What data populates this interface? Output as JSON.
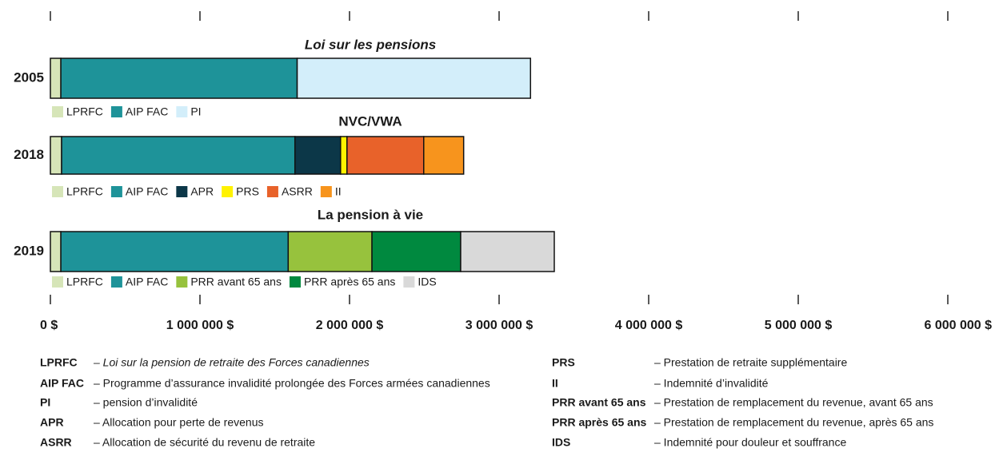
{
  "chart_data": {
    "type": "stacked_bar",
    "xlim": [
      0,
      6000000
    ],
    "xticks": [
      {
        "value": 0,
        "label": "0 $"
      },
      {
        "value": 1000000,
        "label": "1 000 000 $"
      },
      {
        "value": 2000000,
        "label": "2 000 000 $"
      },
      {
        "value": 3000000,
        "label": "3 000 000 $"
      },
      {
        "value": 4000000,
        "label": "4 000 000 $"
      },
      {
        "value": 5000000,
        "label": "5 000 000 $"
      },
      {
        "value": 6000000,
        "label": "6 000 000 $"
      }
    ],
    "rows": [
      {
        "category": "2005",
        "title": "Loi sur les pensions",
        "title_italic": true,
        "segments": [
          {
            "name": "LPRFC",
            "color": "#d6e5b8",
            "value": 70000
          },
          {
            "name": "AIP FAC",
            "color": "#1e9399",
            "value": 1580000
          },
          {
            "name": "PI",
            "color": "#d3eefa",
            "value": 1560000
          }
        ]
      },
      {
        "category": "2018",
        "title": "NVC/VWA",
        "title_italic": false,
        "segments": [
          {
            "name": "LPRFC",
            "color": "#d6e5b8",
            "value": 75000
          },
          {
            "name": "AIP FAC",
            "color": "#1e9399",
            "value": 1560000
          },
          {
            "name": "APR",
            "color": "#0c3748",
            "value": 305000
          },
          {
            "name": "PRS",
            "color": "#fff200",
            "value": 43000
          },
          {
            "name": "ASRR",
            "color": "#e8622a",
            "value": 513000
          },
          {
            "name": "II",
            "color": "#f7941d",
            "value": 267000
          }
        ]
      },
      {
        "category": "2019",
        "title": "La pension à vie",
        "title_italic": false,
        "segments": [
          {
            "name": "LPRFC",
            "color": "#d6e5b8",
            "value": 70000
          },
          {
            "name": "AIP FAC",
            "color": "#1e9399",
            "value": 1520000
          },
          {
            "name": "PRR avant 65 ans",
            "color": "#97c23d",
            "value": 560000
          },
          {
            "name": "PRR après 65 ans",
            "color": "#00893f",
            "value": 593000
          },
          {
            "name": "IDS",
            "color": "#d9d9d9",
            "value": 626000
          }
        ]
      }
    ]
  },
  "glossary": [
    [
      {
        "abbr": "LPRFC",
        "definition": "– Loi sur la pension de retraite des Forces canadiennes",
        "italic": true
      },
      {
        "abbr": "AIP FAC",
        "definition": "– Programme d’assurance invalidité prolongée des Forces armées canadiennes",
        "italic": false
      },
      {
        "abbr": "PI",
        "definition": "– pension d’invalidité",
        "italic": false
      },
      {
        "abbr": "APR",
        "definition": "– Allocation pour perte de revenus",
        "italic": false
      },
      {
        "abbr": "ASRR",
        "definition": "– Allocation de sécurité du revenu de retraite",
        "italic": false
      }
    ],
    [
      {
        "abbr": "PRS",
        "definition": "– Prestation de retraite supplémentaire",
        "italic": false
      },
      {
        "abbr": "II",
        "definition": "– Indemnité d’invalidité",
        "italic": false
      },
      {
        "abbr": "PRR avant  65 ans",
        "definition": "– Prestation de remplacement du revenue, avant 65 ans",
        "italic": false
      },
      {
        "abbr": "PRR après 65 ans",
        "definition": "– Prestation de remplacement du revenue, après 65 ans",
        "italic": false
      },
      {
        "abbr": "IDS",
        "definition": "– Indemnité pour douleur et souffrance",
        "italic": false
      }
    ]
  ]
}
